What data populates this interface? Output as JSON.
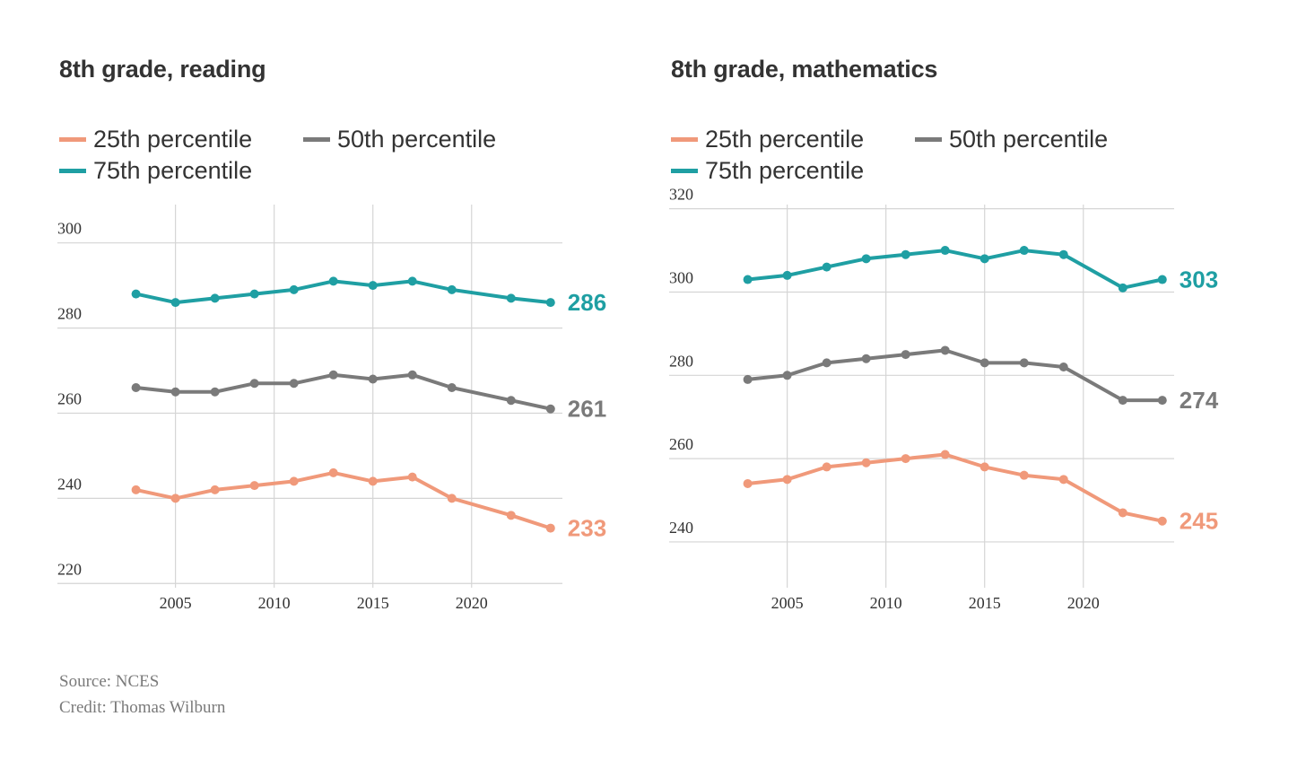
{
  "colors": {
    "p25": "#f0997a",
    "p50": "#7a7a7a",
    "p75": "#1f9fa3",
    "grid": "#d5d5d5"
  },
  "chart_data": [
    {
      "type": "line",
      "title": "8th grade, reading",
      "legend": [
        "25th percentile",
        "50th percentile",
        "75th percentile"
      ],
      "xlim": [
        2002.2,
        2024.6
      ],
      "ylim": [
        219,
        309
      ],
      "xticks": [
        2005,
        2010,
        2015,
        2020
      ],
      "xtick_labels": [
        "2005",
        "2010",
        "2015",
        "2020"
      ],
      "yticks": [
        220,
        240,
        260,
        280,
        300
      ],
      "ytick_labels": [
        "220",
        "240",
        "260",
        "280",
        "300"
      ],
      "grid": true,
      "x": [
        2003,
        2005,
        2007,
        2009,
        2011,
        2013,
        2015,
        2017,
        2019,
        2022,
        2024
      ],
      "series": [
        {
          "name": "25th percentile",
          "color_key": "p25",
          "values": [
            242,
            240,
            242,
            243,
            244,
            246,
            244,
            245,
            240,
            236,
            233
          ],
          "end_label": "233"
        },
        {
          "name": "50th percentile",
          "color_key": "p50",
          "values": [
            266,
            265,
            265,
            267,
            267,
            269,
            268,
            269,
            266,
            263,
            261
          ],
          "end_label": "261"
        },
        {
          "name": "75th percentile",
          "color_key": "p75",
          "values": [
            288,
            286,
            287,
            288,
            289,
            291,
            290,
            291,
            289,
            287,
            286
          ],
          "end_label": "286"
        }
      ]
    },
    {
      "type": "line",
      "title": "8th grade, mathematics",
      "legend": [
        "25th percentile",
        "50th percentile",
        "75th percentile"
      ],
      "xlim": [
        2002.2,
        2024.6
      ],
      "ylim": [
        229,
        321
      ],
      "xticks": [
        2005,
        2010,
        2015,
        2020
      ],
      "xtick_labels": [
        "2005",
        "2010",
        "2015",
        "2020"
      ],
      "yticks": [
        240,
        260,
        280,
        300,
        320
      ],
      "ytick_labels": [
        "240",
        "260",
        "280",
        "300",
        "320"
      ],
      "grid": true,
      "x": [
        2003,
        2005,
        2007,
        2009,
        2011,
        2013,
        2015,
        2017,
        2019,
        2022,
        2024
      ],
      "series": [
        {
          "name": "25th percentile",
          "color_key": "p25",
          "values": [
            254,
            255,
            258,
            259,
            260,
            261,
            258,
            256,
            255,
            247,
            245
          ],
          "end_label": "245"
        },
        {
          "name": "50th percentile",
          "color_key": "p50",
          "values": [
            279,
            280,
            283,
            284,
            285,
            286,
            283,
            283,
            282,
            274,
            274
          ],
          "end_label": "274"
        },
        {
          "name": "75th percentile",
          "color_key": "p75",
          "values": [
            303,
            304,
            306,
            308,
            309,
            310,
            308,
            310,
            309,
            301,
            303
          ],
          "end_label": "303"
        }
      ]
    }
  ],
  "footer": {
    "source": "Source: NCES",
    "credit": "Credit: Thomas Wilburn"
  }
}
